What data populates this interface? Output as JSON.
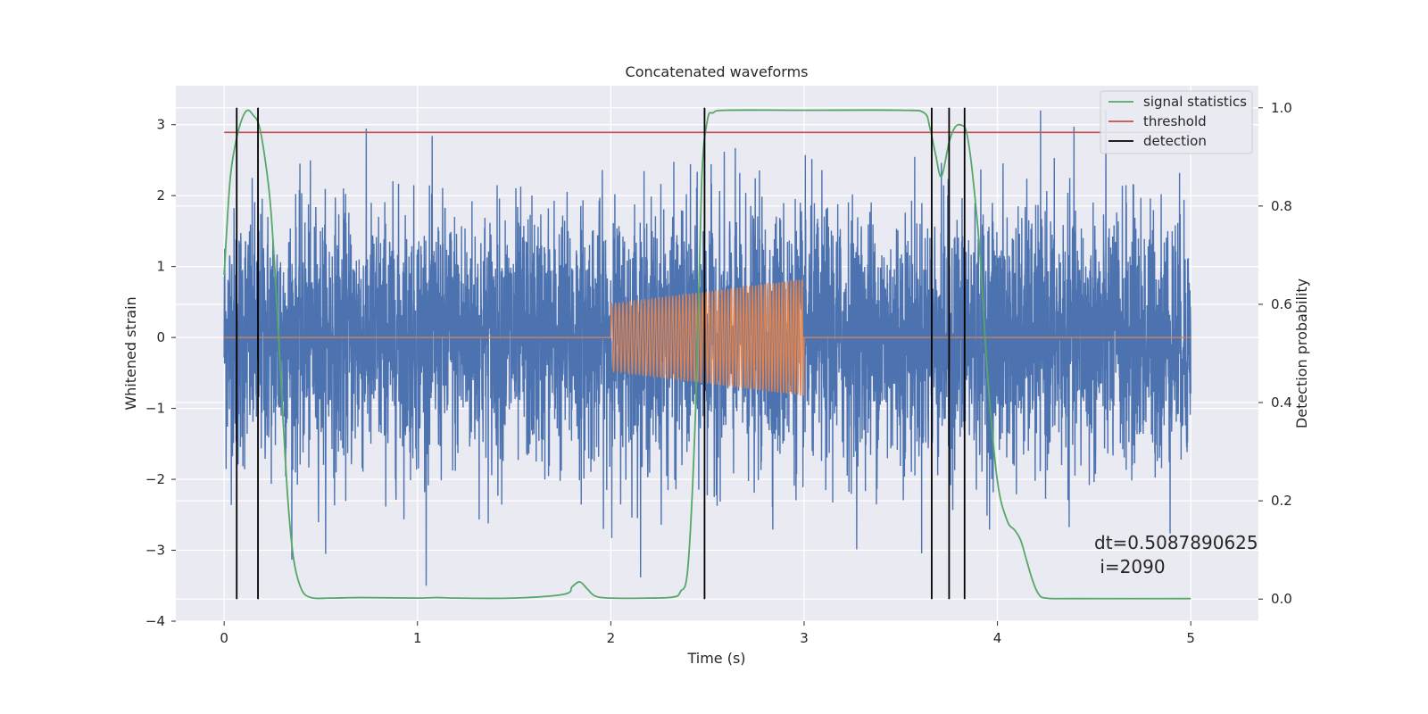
{
  "chart_data": {
    "type": "line",
    "title": "Concatenated waveforms",
    "xlabel": "Time (s)",
    "ylabel": "Whitened strain",
    "y2label": "Detection probability",
    "xlim": [
      -0.25,
      5.35
    ],
    "ylim": [
      -4.0,
      3.55
    ],
    "y2lim": [
      -0.045,
      1.045
    ],
    "xticks": [
      0,
      1,
      2,
      3,
      4,
      5
    ],
    "yticks": [
      -4,
      -3,
      -2,
      -1,
      0,
      1,
      2,
      3
    ],
    "y2ticks": [
      0.0,
      0.2,
      0.4,
      0.6,
      0.8,
      1.0
    ],
    "xtick_labels": [
      "0",
      "1",
      "2",
      "3",
      "4",
      "5"
    ],
    "ytick_labels": [
      "−4",
      "−3",
      "−2",
      "−1",
      "0",
      "1",
      "2",
      "3"
    ],
    "y2tick_labels": [
      "0.0",
      "0.2",
      "0.4",
      "0.6",
      "0.8",
      "1.0"
    ],
    "grid": true,
    "legend_position": "top-right",
    "series": [
      {
        "name": "",
        "color": "#4c72b0",
        "axis": "left",
        "description_kind": "noise",
        "x_range": [
          0,
          5
        ],
        "amplitude_rms": 0.9,
        "peak_range": [
          -3.5,
          3.2
        ]
      },
      {
        "name": "",
        "color": "#dd8452",
        "axis": "left",
        "description_kind": "chirp",
        "flat_range": [
          0,
          5
        ],
        "chirp_x_range": [
          2.0,
          3.0
        ],
        "chirp_amplitude": [
          0.47,
          0.82
        ],
        "chirp_cycles": 60
      },
      {
        "name": "signal statistics",
        "color": "#55a868",
        "axis": "right",
        "x": [
          0,
          0.03,
          0.06,
          0.09,
          0.12,
          0.15,
          0.18,
          0.21,
          0.24,
          0.27,
          0.3,
          0.33,
          0.36,
          0.4,
          0.45,
          0.55,
          0.7,
          1.0,
          1.1,
          1.2,
          1.5,
          1.76,
          1.8,
          1.84,
          1.88,
          1.92,
          2.0,
          2.2,
          2.32,
          2.36,
          2.4,
          2.44,
          2.47,
          2.5,
          2.53,
          2.6,
          3.0,
          3.5,
          3.62,
          3.65,
          3.68,
          3.71,
          3.75,
          3.78,
          3.81,
          3.84,
          3.87,
          3.91,
          3.95,
          4.0,
          4.05,
          4.09,
          4.12,
          4.15,
          4.18,
          4.21,
          4.25,
          4.4,
          5.0
        ],
        "y": [
          0.66,
          0.85,
          0.93,
          0.975,
          0.995,
          0.985,
          0.965,
          0.9,
          0.8,
          0.62,
          0.4,
          0.2,
          0.08,
          0.02,
          0.003,
          0.002,
          0.003,
          0.002,
          0.003,
          0.002,
          0.002,
          0.01,
          0.025,
          0.035,
          0.02,
          0.006,
          0.002,
          0.002,
          0.004,
          0.015,
          0.07,
          0.4,
          0.85,
          0.975,
          0.99,
          0.995,
          0.995,
          0.995,
          0.99,
          0.96,
          0.905,
          0.86,
          0.93,
          0.96,
          0.965,
          0.95,
          0.87,
          0.7,
          0.45,
          0.24,
          0.16,
          0.14,
          0.12,
          0.08,
          0.04,
          0.012,
          0.002,
          0.001,
          0.001
        ]
      },
      {
        "name": "threshold",
        "color": "#c44e52",
        "axis": "right",
        "x": [
          0,
          5
        ],
        "y": [
          0.95,
          0.95
        ]
      },
      {
        "name": "detection",
        "color": "#000000",
        "axis": "right",
        "x": [
          0.065,
          0.175,
          2.485,
          3.66,
          3.75,
          3.83
        ]
      }
    ],
    "annotation": {
      "line1": "dt=0.5087890625",
      "line2": " i=2090",
      "x": 4.5,
      "y": -2.95
    }
  }
}
